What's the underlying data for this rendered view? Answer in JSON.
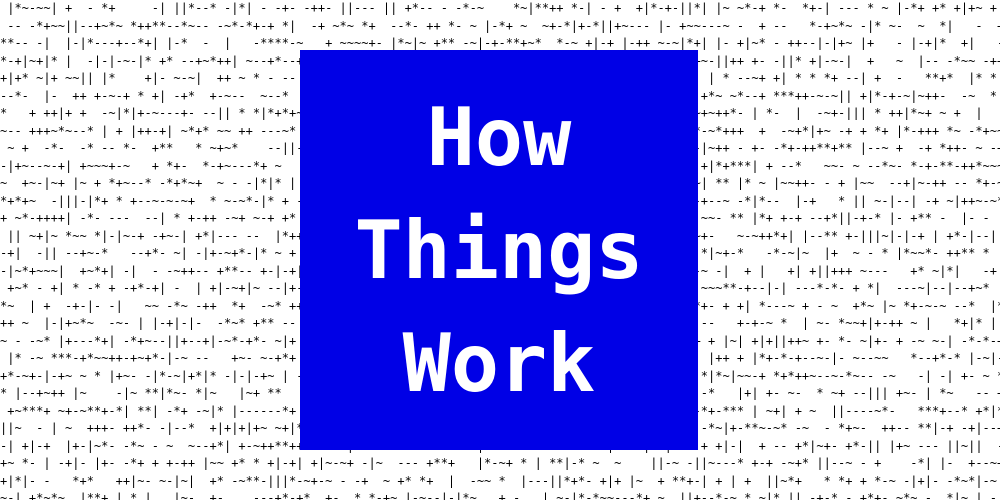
{
  "title": {
    "lines": [
      "How",
      "Things",
      "Work"
    ],
    "text_color": "#ffffff",
    "panel_color": "#0000e6"
  },
  "background": {
    "pattern_chars": "*-+|~ ",
    "text_color": "#000000",
    "bg_color": "#ffffff"
  }
}
